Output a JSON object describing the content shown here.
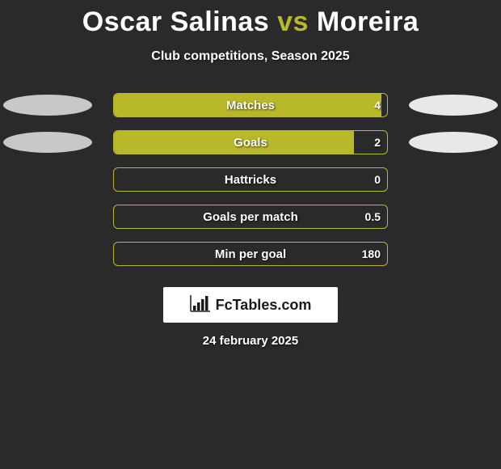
{
  "background_color": "#2a2a2a",
  "title": {
    "player1": "Oscar Salinas",
    "vs": "vs",
    "player2": "Moreira",
    "player_color": "#ffffff",
    "vs_color": "#b9b72a",
    "fontsize": 34
  },
  "subtitle": "Club competitions, Season 2025",
  "bar_style": {
    "border_color": "#b9b72a",
    "fill_color": "#b9b72a",
    "label_color": "#ffffff",
    "track_width": 340,
    "track_height": 30,
    "border_radius": 6,
    "fontsize": 15
  },
  "ellipse_left_color": "#c8c8c8",
  "ellipse_right_color": "#e8e8e8",
  "rows": [
    {
      "label": "Matches",
      "value": "4",
      "fill_pct": 98,
      "show_left_ellipse": true,
      "show_right_ellipse": true
    },
    {
      "label": "Goals",
      "value": "2",
      "fill_pct": 88,
      "show_left_ellipse": true,
      "show_right_ellipse": true
    },
    {
      "label": "Hattricks",
      "value": "0",
      "fill_pct": 0,
      "show_left_ellipse": false,
      "show_right_ellipse": false
    },
    {
      "label": "Goals per match",
      "value": "0.5",
      "fill_pct": 0,
      "show_left_ellipse": false,
      "show_right_ellipse": false
    },
    {
      "label": "Min per goal",
      "value": "180",
      "fill_pct": 0,
      "show_left_ellipse": false,
      "show_right_ellipse": false
    }
  ],
  "watermark": {
    "text": "FcTables.com",
    "bg": "#ffffff",
    "text_color": "#1a1a1a"
  },
  "date": "24 february 2025"
}
